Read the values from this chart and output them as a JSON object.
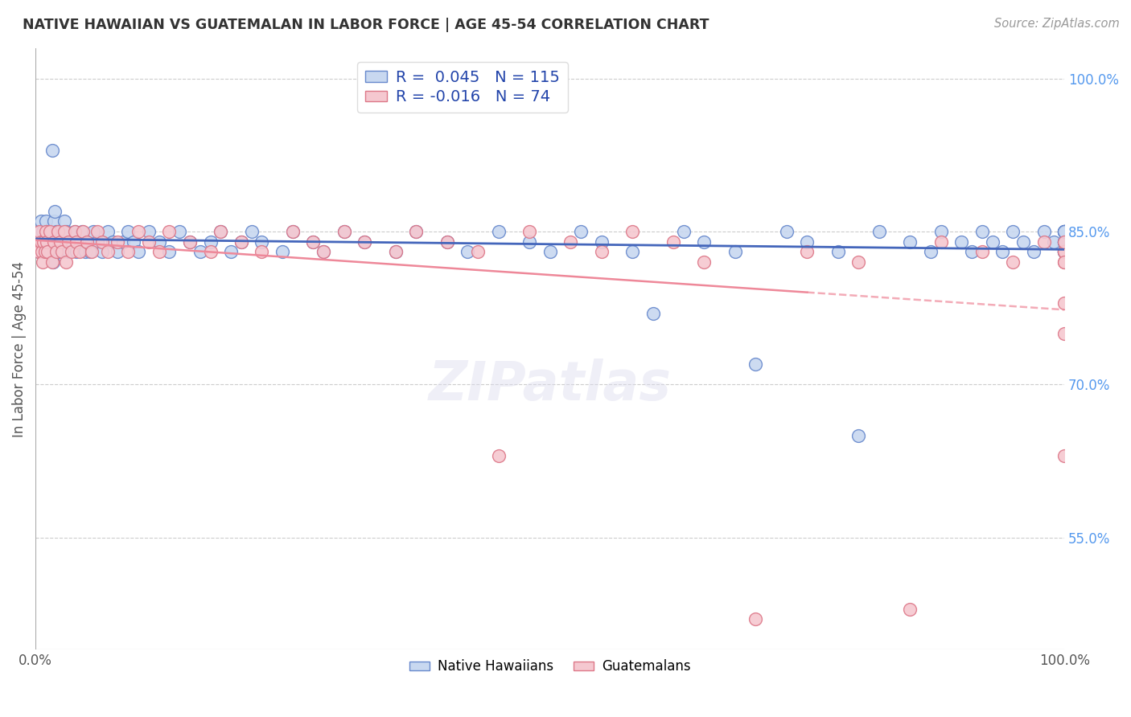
{
  "title": "NATIVE HAWAIIAN VS GUATEMALAN IN LABOR FORCE | AGE 45-54 CORRELATION CHART",
  "source": "Source: ZipAtlas.com",
  "ylabel": "In Labor Force | Age 45-54",
  "right_yticks": [
    55.0,
    70.0,
    85.0,
    100.0
  ],
  "blue_R": 0.045,
  "blue_N": 115,
  "pink_R": -0.016,
  "pink_N": 74,
  "blue_fill": "#C8D8F0",
  "pink_fill": "#F5C8D0",
  "blue_edge": "#6688CC",
  "pink_edge": "#DD7788",
  "blue_line_color": "#4466BB",
  "pink_line_color": "#EE8899",
  "legend_blue_label": "Native Hawaiians",
  "legend_pink_label": "Guatemalans",
  "y_min": 44,
  "y_max": 103,
  "x_min": 0,
  "x_max": 100,
  "blue_x": [
    0.2,
    0.3,
    0.4,
    0.5,
    0.6,
    0.7,
    0.8,
    0.9,
    1.0,
    1.1,
    1.2,
    1.3,
    1.4,
    1.5,
    1.6,
    1.7,
    1.8,
    1.9,
    2.0,
    2.1,
    2.2,
    2.4,
    2.6,
    2.8,
    3.0,
    3.2,
    3.5,
    3.8,
    4.0,
    4.2,
    4.5,
    4.8,
    5.0,
    5.3,
    5.6,
    6.0,
    6.5,
    7.0,
    7.5,
    8.0,
    8.5,
    9.0,
    9.5,
    10.0,
    11.0,
    12.0,
    13.0,
    14.0,
    15.0,
    16.0,
    17.0,
    18.0,
    19.0,
    20.0,
    21.0,
    22.0,
    24.0,
    25.0,
    27.0,
    28.0,
    30.0,
    32.0,
    35.0,
    37.0,
    40.0,
    42.0,
    45.0,
    48.0,
    50.0,
    53.0,
    55.0,
    58.0,
    60.0,
    63.0,
    65.0,
    68.0,
    70.0,
    73.0,
    75.0,
    78.0,
    80.0,
    82.0,
    85.0,
    87.0,
    88.0,
    90.0,
    91.0,
    92.0,
    93.0,
    94.0,
    95.0,
    96.0,
    97.0,
    98.0,
    99.0,
    100.0,
    100.0,
    100.0,
    100.0,
    100.0,
    100.0,
    100.0,
    100.0,
    100.0,
    100.0,
    100.0,
    100.0,
    100.0,
    100.0,
    100.0,
    100.0,
    100.0,
    100.0,
    100.0,
    100.0
  ],
  "blue_y": [
    84,
    83,
    85,
    86,
    84,
    85,
    84,
    83,
    86,
    85,
    84,
    83,
    85,
    84,
    93,
    82,
    86,
    87,
    85,
    84,
    83,
    85,
    84,
    86,
    85,
    83,
    84,
    85,
    83,
    84,
    85,
    83,
    84,
    83,
    85,
    84,
    83,
    85,
    84,
    83,
    84,
    85,
    84,
    83,
    85,
    84,
    83,
    85,
    84,
    83,
    84,
    85,
    83,
    84,
    85,
    84,
    83,
    85,
    84,
    83,
    85,
    84,
    83,
    85,
    84,
    83,
    85,
    84,
    83,
    85,
    84,
    83,
    77,
    85,
    84,
    83,
    72,
    85,
    84,
    83,
    65,
    85,
    84,
    83,
    85,
    84,
    83,
    85,
    84,
    83,
    85,
    84,
    83,
    85,
    84,
    83,
    85,
    84,
    83,
    85,
    84,
    83,
    85,
    84,
    83,
    85,
    84,
    83,
    85,
    84,
    83,
    85,
    84,
    83,
    85
  ],
  "pink_x": [
    0.2,
    0.3,
    0.4,
    0.5,
    0.6,
    0.7,
    0.8,
    0.9,
    1.0,
    1.1,
    1.2,
    1.4,
    1.6,
    1.8,
    2.0,
    2.2,
    2.4,
    2.6,
    2.8,
    3.0,
    3.2,
    3.5,
    3.8,
    4.0,
    4.3,
    4.6,
    5.0,
    5.5,
    6.0,
    6.5,
    7.0,
    8.0,
    9.0,
    10.0,
    11.0,
    12.0,
    13.0,
    15.0,
    17.0,
    18.0,
    20.0,
    22.0,
    25.0,
    27.0,
    28.0,
    30.0,
    32.0,
    35.0,
    37.0,
    40.0,
    43.0,
    45.0,
    48.0,
    52.0,
    55.0,
    58.0,
    62.0,
    65.0,
    70.0,
    75.0,
    80.0,
    85.0,
    88.0,
    92.0,
    95.0,
    98.0,
    100.0,
    100.0,
    100.0,
    100.0,
    100.0,
    100.0,
    100.0,
    100.0
  ],
  "pink_y": [
    84,
    83,
    85,
    84,
    83,
    82,
    84,
    83,
    85,
    84,
    83,
    85,
    82,
    84,
    83,
    85,
    84,
    83,
    85,
    82,
    84,
    83,
    85,
    84,
    83,
    85,
    84,
    83,
    85,
    84,
    83,
    84,
    83,
    85,
    84,
    83,
    85,
    84,
    83,
    85,
    84,
    83,
    85,
    84,
    83,
    85,
    84,
    83,
    85,
    84,
    83,
    63,
    85,
    84,
    83,
    85,
    84,
    82,
    47,
    83,
    82,
    48,
    84,
    83,
    82,
    84,
    83,
    82,
    83,
    84,
    78,
    63,
    75,
    82
  ]
}
